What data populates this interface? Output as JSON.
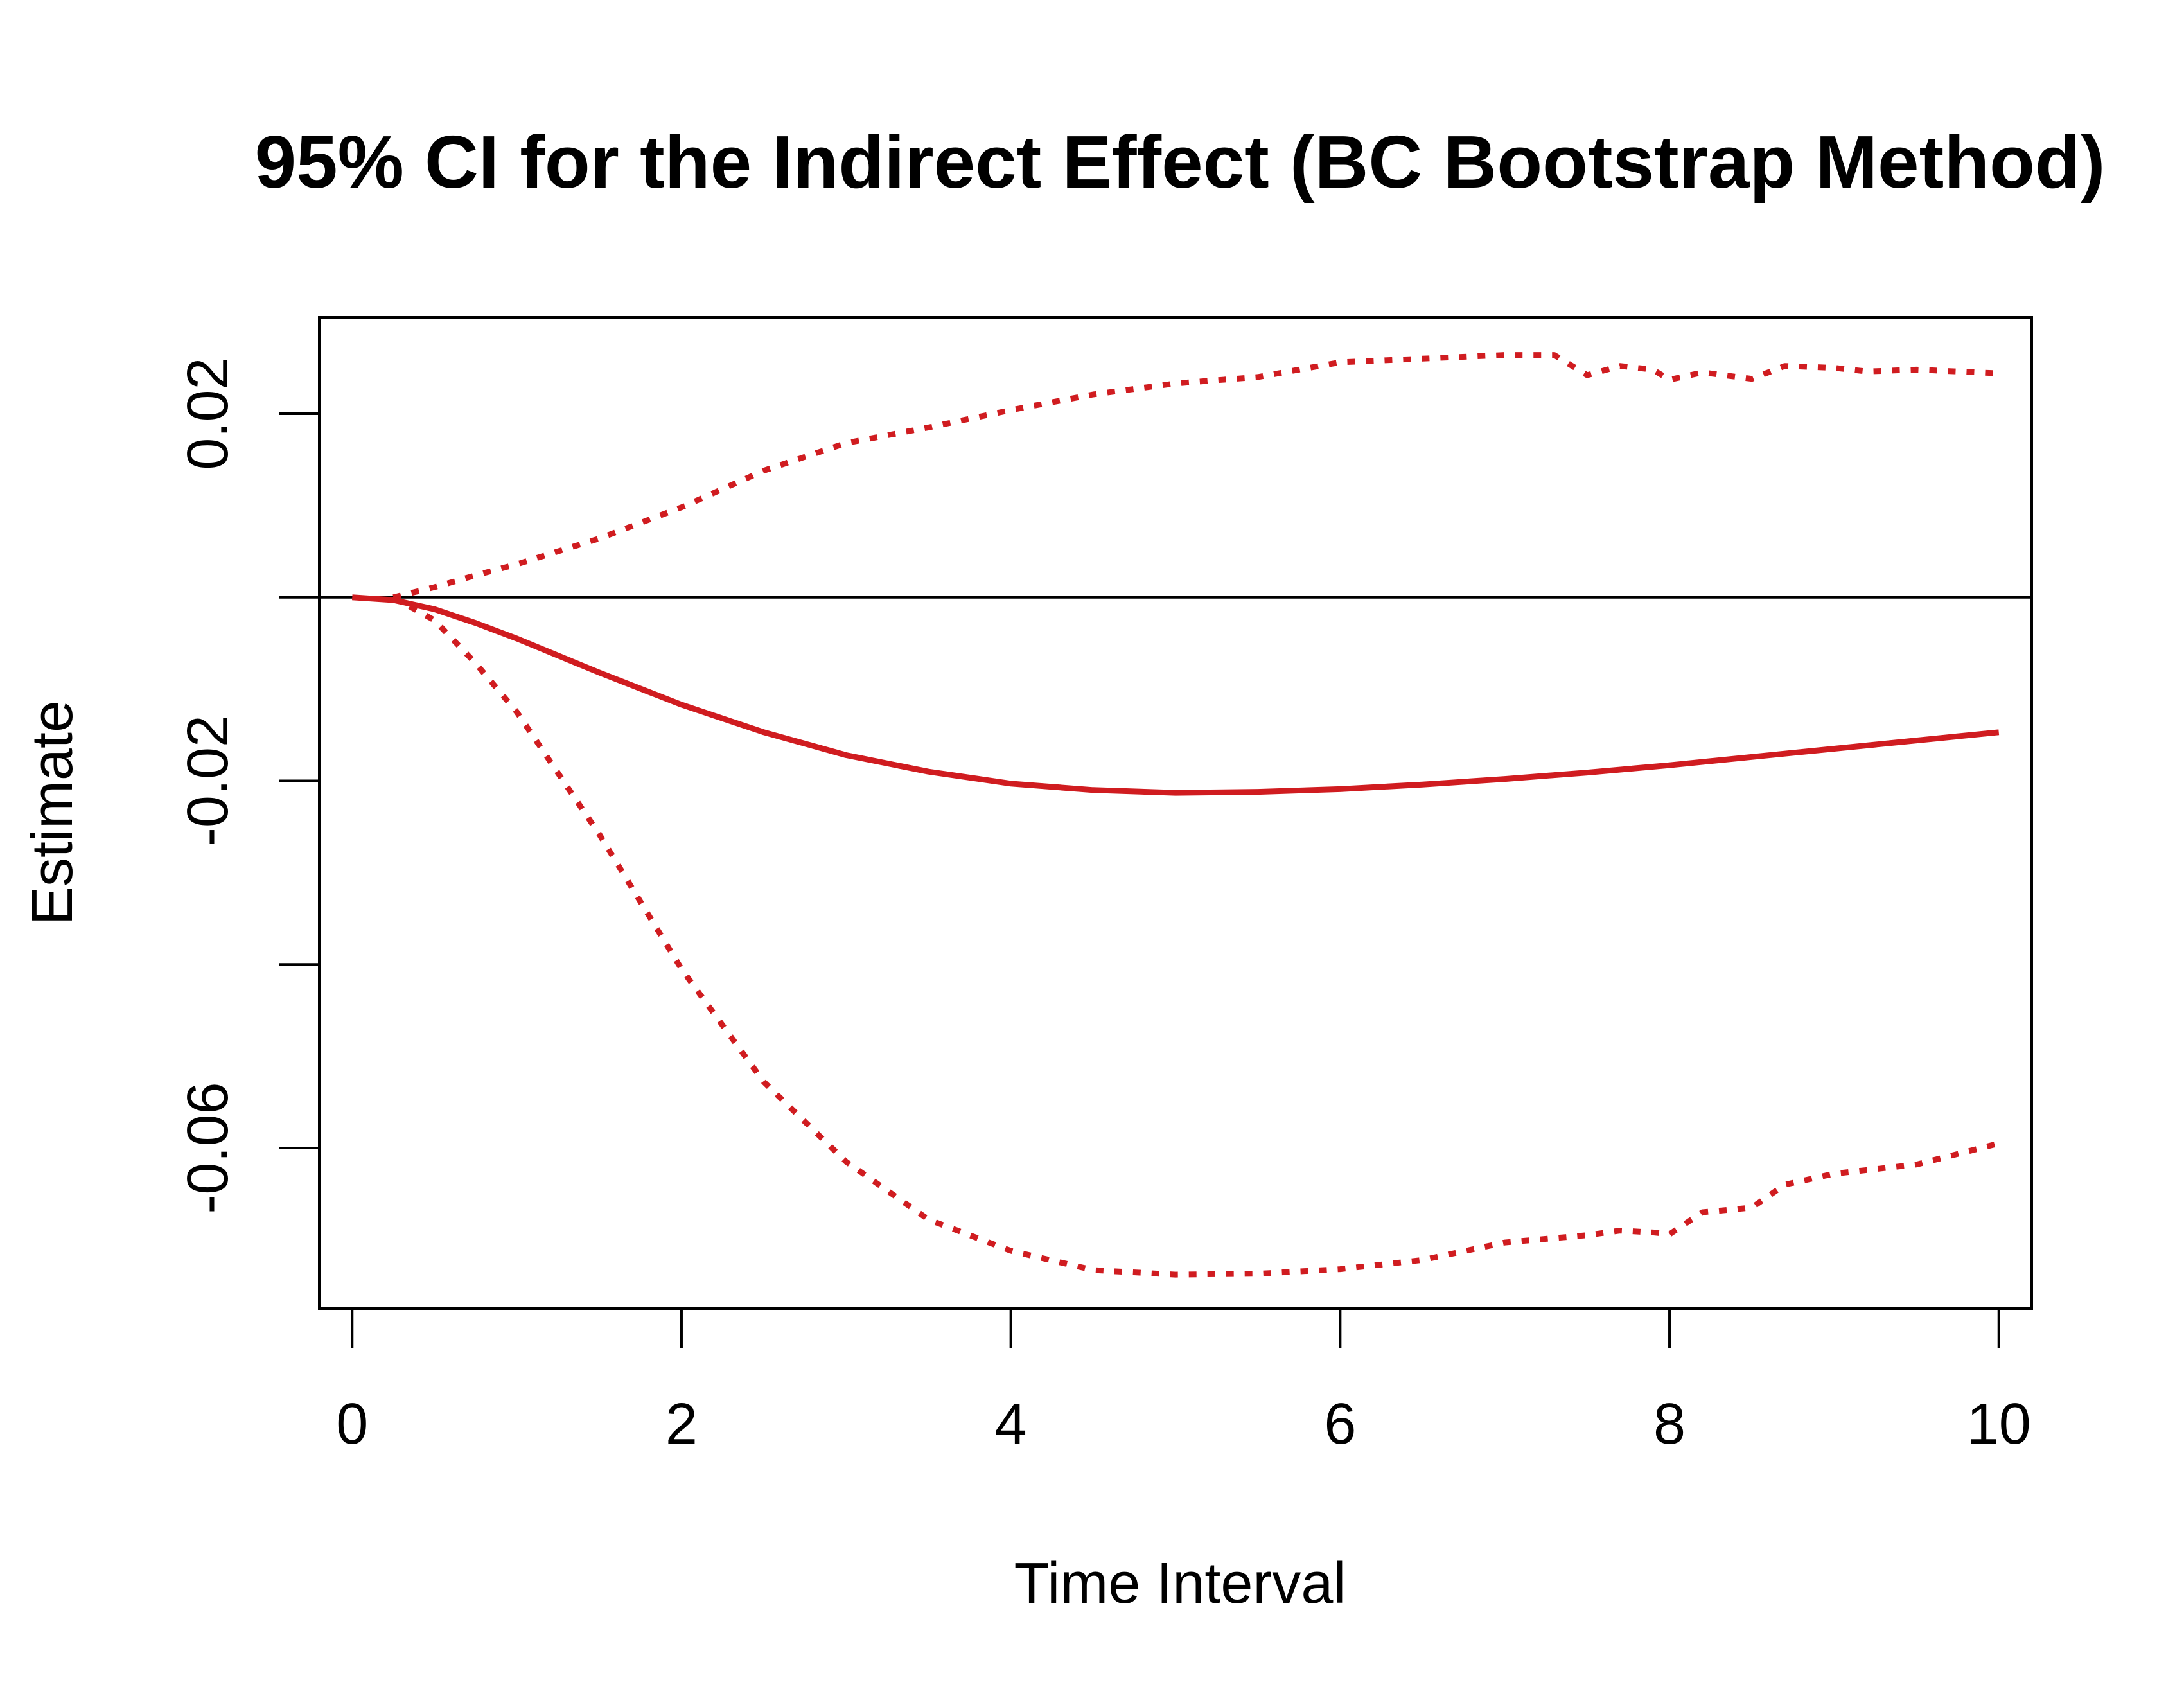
{
  "chart_data": {
    "type": "line",
    "title": "95% CI for the Indirect Effect (BC Bootstrap Method)",
    "xlabel": "Time Interval",
    "ylabel": "Estimate",
    "xlim": [
      -0.2,
      10.2
    ],
    "ylim": [
      -0.0775,
      0.0305
    ],
    "x_ticks": [
      0,
      2,
      4,
      6,
      8,
      10
    ],
    "x_tick_labels": [
      "0",
      "2",
      "4",
      "6",
      "8",
      "10"
    ],
    "y_ticks": [
      0.02,
      0.0,
      -0.02,
      -0.04,
      -0.06
    ],
    "y_tick_labels": [
      "0.02",
      "",
      "-0.02",
      "",
      "-0.06"
    ],
    "reference_line_y": 0,
    "grid": false,
    "colors": {
      "series": "#d01c20",
      "axis": "#000000",
      "reference": "#000000"
    },
    "series": [
      {
        "style": "solid",
        "x": [
          0,
          0.25,
          0.5,
          0.75,
          1,
          1.5,
          2,
          2.5,
          3,
          3.5,
          4,
          4.5,
          5,
          5.5,
          6,
          6.5,
          7,
          7.5,
          8,
          8.5,
          9,
          9.5,
          10
        ],
        "y": [
          0,
          -0.0003,
          -0.0013,
          -0.0028,
          -0.0045,
          -0.0082,
          -0.0117,
          -0.0147,
          -0.0172,
          -0.019,
          -0.0203,
          -0.021,
          -0.0213,
          -0.0212,
          -0.0209,
          -0.0204,
          -0.0198,
          -0.0191,
          -0.0183,
          -0.0174,
          -0.0165,
          -0.0156,
          -0.0147
        ]
      },
      {
        "style": "dotted",
        "x": [
          0.25,
          0.5,
          0.75,
          1,
          1.5,
          2,
          2.5,
          3,
          3.5,
          4,
          4.5,
          5,
          5.5,
          6,
          6.5,
          7,
          7.3,
          7.4,
          7.5,
          7.7,
          7.9,
          8.0,
          8.2,
          8.5,
          8.7,
          9.0,
          9.2,
          9.5,
          10
        ],
        "y": [
          0,
          0.0011,
          0.0024,
          0.0036,
          0.0064,
          0.0098,
          0.0138,
          0.0168,
          0.0185,
          0.0204,
          0.0221,
          0.0233,
          0.024,
          0.0256,
          0.026,
          0.0264,
          0.0264,
          0.0253,
          0.0242,
          0.0252,
          0.0248,
          0.0237,
          0.0245,
          0.0238,
          0.0252,
          0.025,
          0.0246,
          0.0248,
          0.0244
        ]
      },
      {
        "style": "dotted",
        "x": [
          0.25,
          0.5,
          0.75,
          1,
          1.5,
          2,
          2.5,
          3,
          3.5,
          4,
          4.5,
          5,
          5.5,
          6,
          6.5,
          7,
          7.5,
          7.7,
          7.9,
          8.0,
          8.2,
          8.5,
          8.7,
          9.0,
          9.5,
          10
        ],
        "y": [
          0,
          -0.0025,
          -0.0072,
          -0.0125,
          -0.0258,
          -0.0405,
          -0.0528,
          -0.0615,
          -0.0678,
          -0.0712,
          -0.0733,
          -0.0738,
          -0.0737,
          -0.0732,
          -0.0722,
          -0.0703,
          -0.0695,
          -0.069,
          -0.0692,
          -0.0694,
          -0.067,
          -0.0665,
          -0.064,
          -0.0628,
          -0.0618,
          -0.0595
        ]
      }
    ]
  }
}
